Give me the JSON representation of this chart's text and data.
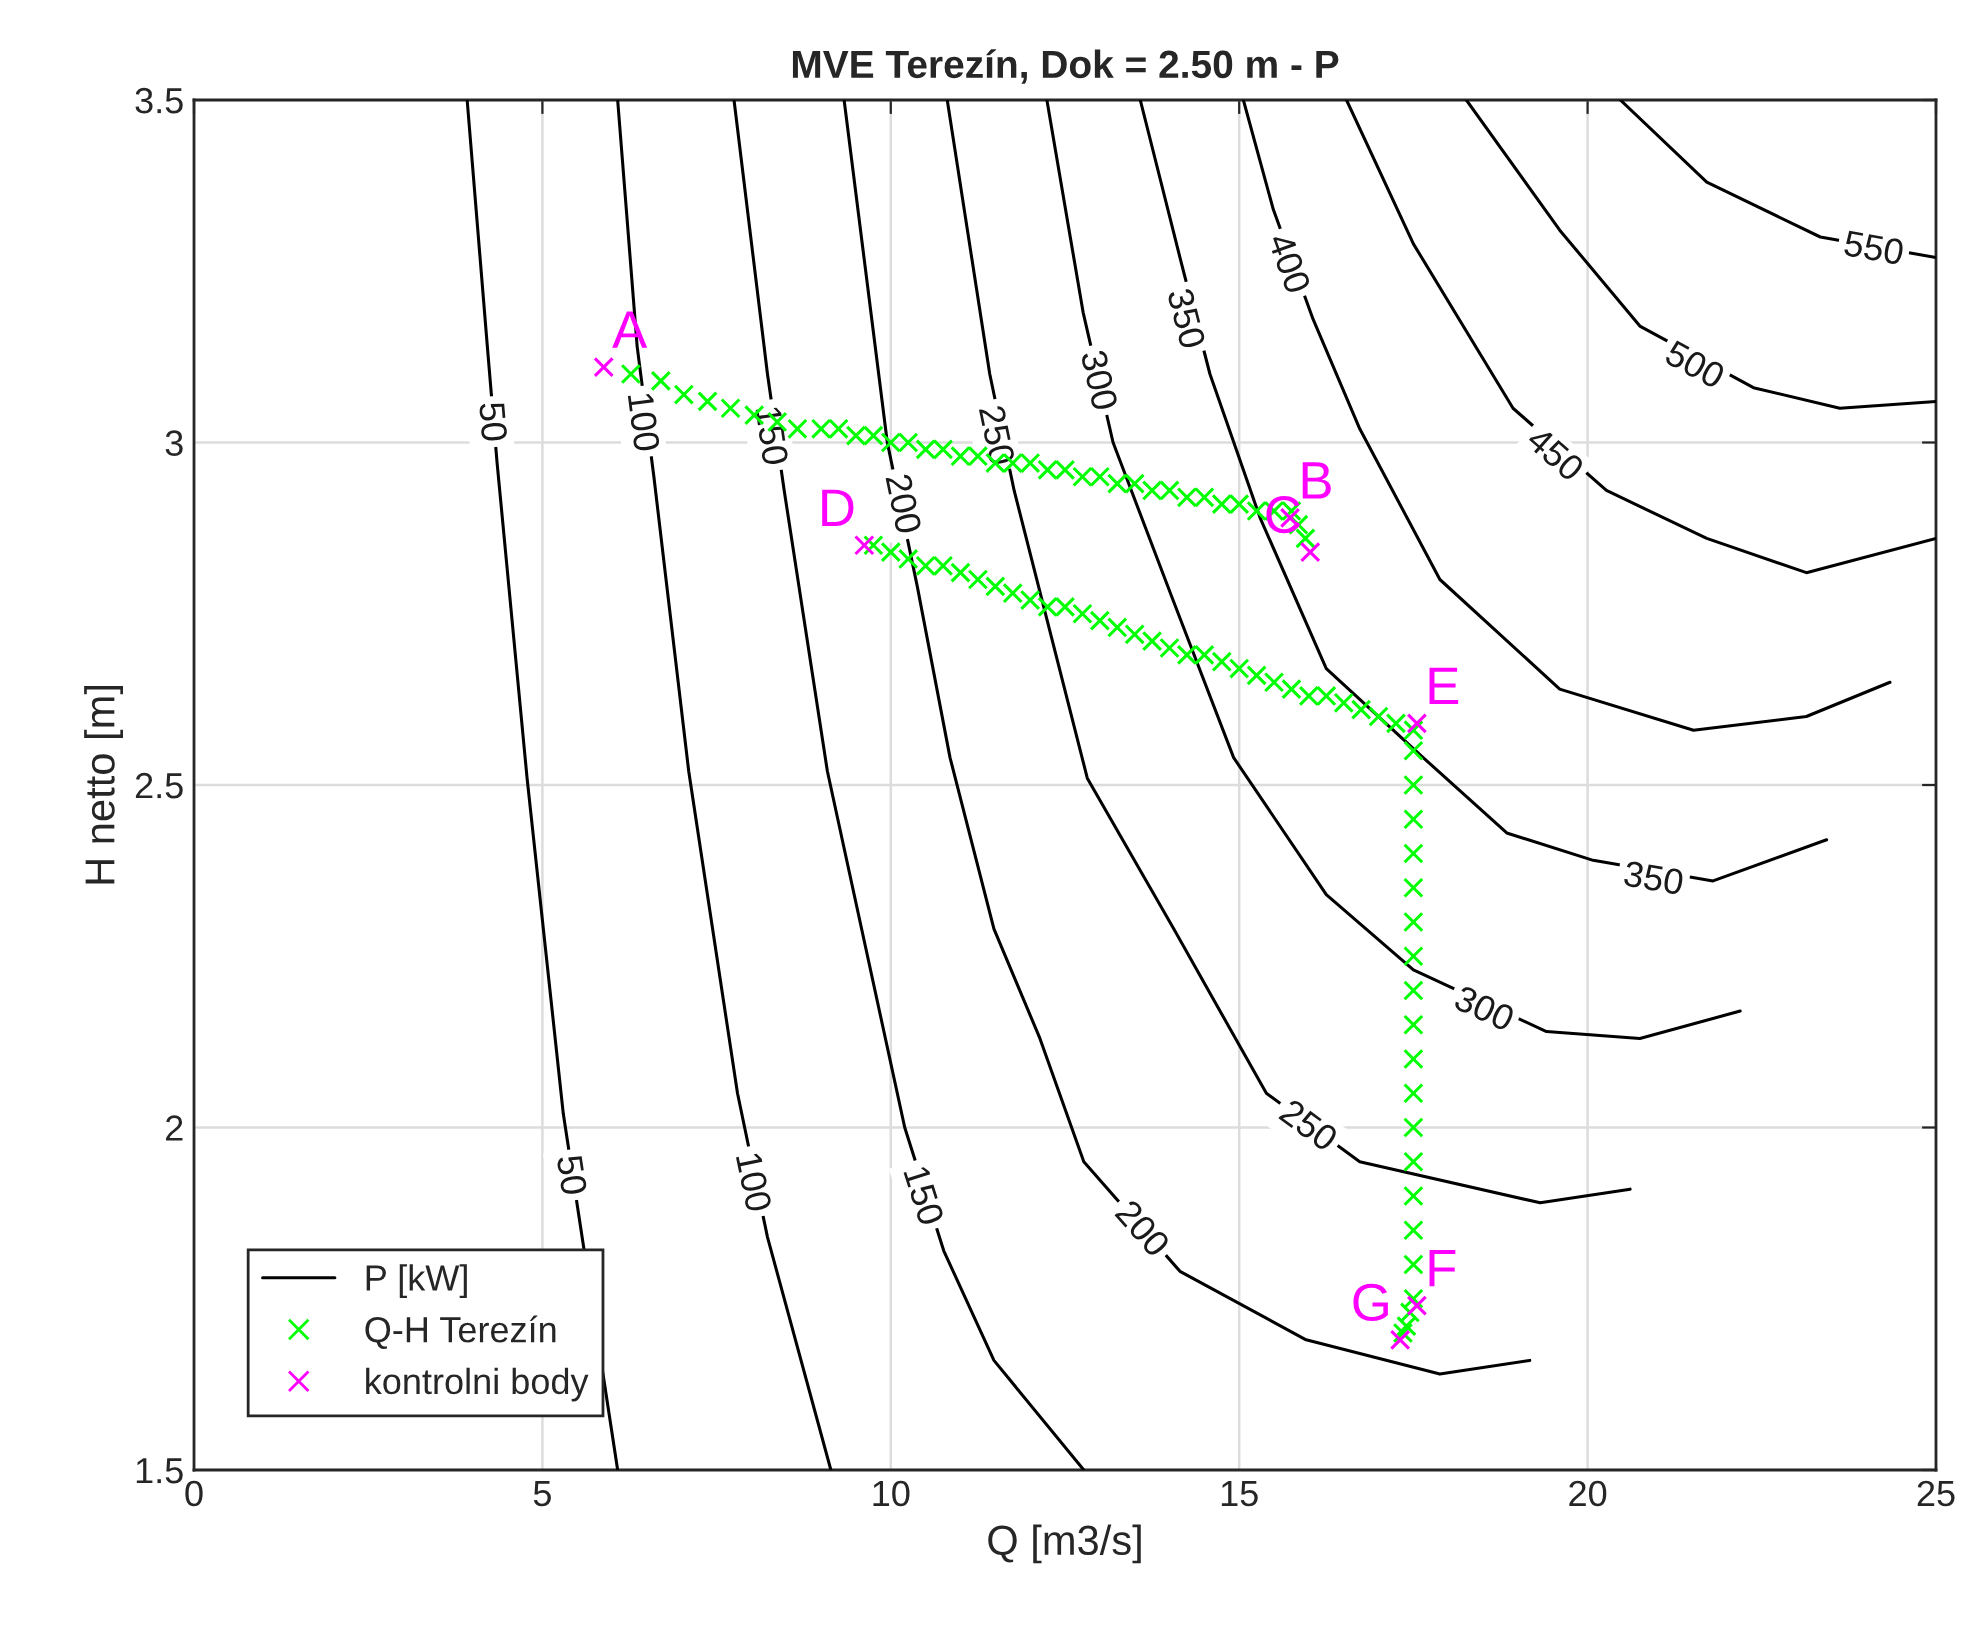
{
  "chart_data": {
    "type": "line",
    "title": "MVE Terezín, Dok = 2.50 m - P",
    "xlabel": "Q [m3/s]",
    "ylabel": "H netto [m]",
    "xlim": [
      0,
      25
    ],
    "ylim": [
      1.5,
      3.5
    ],
    "xticks": [
      0,
      5,
      10,
      15,
      20,
      25
    ],
    "yticks": [
      1.5,
      2,
      2.5,
      3,
      3.5
    ],
    "grid": true,
    "legend": "bottom left",
    "annotations": [
      {
        "text": "50",
        "x": 4.25,
        "y": 3.03
      },
      {
        "text": "50",
        "x": 5.38,
        "y": 1.93
      },
      {
        "text": "100",
        "x": 6.41,
        "y": 3.03
      },
      {
        "text": "100",
        "x": 7.99,
        "y": 1.92
      },
      {
        "text": "150",
        "x": 8.25,
        "y": 3.01
      },
      {
        "text": "150",
        "x": 10.43,
        "y": 1.9
      },
      {
        "text": "200",
        "x": 10.14,
        "y": 2.91
      },
      {
        "text": "200",
        "x": 13.58,
        "y": 1.85
      },
      {
        "text": "250",
        "x": 11.48,
        "y": 3.01
      },
      {
        "text": "250",
        "x": 15.97,
        "y": 2.0
      },
      {
        "text": "300",
        "x": 12.95,
        "y": 3.09
      },
      {
        "text": "300",
        "x": 18.5,
        "y": 2.17
      },
      {
        "text": "350",
        "x": 14.2,
        "y": 3.18
      },
      {
        "text": "350",
        "x": 20.94,
        "y": 2.36
      },
      {
        "text": "400",
        "x": 15.68,
        "y": 3.26
      },
      {
        "text": "450",
        "x": 19.51,
        "y": 2.98
      },
      {
        "text": "500",
        "x": 21.52,
        "y": 3.11
      },
      {
        "text": "550",
        "x": 24.1,
        "y": 3.28
      }
    ],
    "series": [
      {
        "name": "P [kW]",
        "color": "#000000",
        "x": [
          3.92,
          4.21,
          4.35,
          4.78,
          5.3,
          6.08
        ],
        "values": [
          3.5,
          3.14,
          2.97,
          2.51,
          2.02,
          1.5
        ]
      },
      {
        "color": "#000000",
        "x": [
          6.08,
          6.36,
          6.6,
          7.1,
          7.8,
          8.23,
          9.14
        ],
        "values": [
          3.5,
          3.14,
          2.95,
          2.52,
          2.05,
          1.84,
          1.5
        ]
      },
      {
        "color": "#000000",
        "x": [
          7.75,
          8.23,
          8.47,
          9.09,
          10.2,
          10.76,
          11.48,
          12.77
        ],
        "values": [
          3.5,
          3.1,
          2.93,
          2.52,
          2.0,
          1.82,
          1.66,
          1.5
        ]
      },
      {
        "color": "#000000",
        "x": [
          9.33,
          9.95,
          10.38,
          10.85,
          11.48,
          12.14,
          12.77,
          14.15,
          15.96,
          17.88,
          19.17
        ],
        "values": [
          3.5,
          3.0,
          2.79,
          2.54,
          2.29,
          2.13,
          1.95,
          1.79,
          1.69,
          1.64,
          1.66
        ]
      },
      {
        "color": "#000000",
        "x": [
          10.81,
          11.42,
          11.77,
          12.82,
          14.06,
          15.39,
          16.73,
          19.32,
          20.61
        ],
        "values": [
          3.5,
          3.1,
          2.93,
          2.51,
          2.29,
          2.05,
          1.95,
          1.89,
          1.91
        ]
      },
      {
        "color": "#000000",
        "x": [
          12.24,
          12.76,
          13.19,
          14.05,
          14.92,
          16.25,
          17.5,
          19.41,
          20.75,
          22.19
        ],
        "values": [
          3.5,
          3.19,
          3.0,
          2.77,
          2.54,
          2.34,
          2.23,
          2.14,
          2.13,
          2.17
        ]
      },
      {
        "color": "#000000",
        "x": [
          13.58,
          14.15,
          14.58,
          15.3,
          16.25,
          17.64,
          18.84,
          20.08,
          21.8,
          23.43
        ],
        "values": [
          3.5,
          3.27,
          3.1,
          2.89,
          2.67,
          2.54,
          2.43,
          2.39,
          2.36,
          2.42
        ]
      },
      {
        "color": "#000000",
        "x": [
          15.06,
          15.49,
          16.06,
          16.73,
          17.88,
          19.6,
          21.52,
          23.14,
          24.34
        ],
        "values": [
          3.5,
          3.34,
          3.18,
          3.02,
          2.8,
          2.64,
          2.58,
          2.6,
          2.65
        ]
      },
      {
        "color": "#000000",
        "x": [
          16.54,
          17.5,
          18.93,
          20.27,
          21.71,
          23.14,
          25.0
        ],
        "values": [
          3.5,
          3.29,
          3.05,
          2.93,
          2.86,
          2.81,
          2.86
        ]
      },
      {
        "color": "#000000",
        "x": [
          18.26,
          19.6,
          20.75,
          22.38,
          23.62,
          25.0
        ],
        "values": [
          3.5,
          3.31,
          3.17,
          3.08,
          3.05,
          3.06
        ]
      },
      {
        "color": "#000000",
        "x": [
          20.47,
          21.71,
          23.34,
          25.0
        ],
        "values": [
          3.5,
          3.38,
          3.3,
          3.27
        ]
      },
      {
        "name": "Q-H Terezín",
        "type": "scatter",
        "marker": "cross",
        "color": "#00ff00",
        "x": [
          6.27,
          6.7,
          7.03,
          7.37,
          7.7,
          8.04,
          8.37,
          8.66,
          9.0,
          9.25,
          9.5,
          9.75,
          10.0,
          10.25,
          10.5,
          10.75,
          11.0,
          11.25,
          11.5,
          11.75,
          12.0,
          12.25,
          12.5,
          12.75,
          13.0,
          13.25,
          13.5,
          13.75,
          14.0,
          14.25,
          14.5,
          14.75,
          15.0,
          15.25,
          15.5,
          15.75,
          15.85,
          15.95,
          9.75,
          10.0,
          10.25,
          10.5,
          10.75,
          11.0,
          11.25,
          11.5,
          11.75,
          12.0,
          12.25,
          12.5,
          12.75,
          13.0,
          13.25,
          13.5,
          13.75,
          14.0,
          14.25,
          14.5,
          14.75,
          15.0,
          15.25,
          15.5,
          15.75,
          16.0,
          16.25,
          16.5,
          16.75,
          17.0,
          17.25,
          17.5,
          17.5,
          17.5,
          17.5,
          17.5,
          17.5,
          17.5,
          17.5,
          17.5,
          17.5,
          17.5,
          17.5,
          17.5,
          17.5,
          17.5,
          17.5,
          17.5,
          17.5,
          17.45,
          17.4,
          17.35
        ],
        "values": [
          3.1,
          3.09,
          3.07,
          3.06,
          3.05,
          3.04,
          3.03,
          3.02,
          3.02,
          3.02,
          3.01,
          3.01,
          3.0,
          3.0,
          2.99,
          2.99,
          2.98,
          2.98,
          2.97,
          2.97,
          2.97,
          2.96,
          2.96,
          2.95,
          2.95,
          2.94,
          2.94,
          2.93,
          2.93,
          2.92,
          2.92,
          2.91,
          2.91,
          2.9,
          2.9,
          2.9,
          2.88,
          2.86,
          2.85,
          2.84,
          2.83,
          2.82,
          2.82,
          2.81,
          2.8,
          2.79,
          2.78,
          2.77,
          2.76,
          2.76,
          2.75,
          2.74,
          2.73,
          2.72,
          2.71,
          2.7,
          2.69,
          2.69,
          2.68,
          2.67,
          2.66,
          2.65,
          2.64,
          2.63,
          2.63,
          2.62,
          2.61,
          2.6,
          2.59,
          2.58,
          2.55,
          2.5,
          2.45,
          2.4,
          2.35,
          2.3,
          2.25,
          2.2,
          2.15,
          2.1,
          2.05,
          2.0,
          1.95,
          1.9,
          1.85,
          1.8,
          1.75,
          1.73,
          1.71,
          1.7
        ]
      },
      {
        "name": "kontrolni body",
        "type": "scatter",
        "marker": "cross",
        "color": "#ff00ff",
        "x": [
          5.88,
          15.73,
          16.02,
          9.62,
          17.55,
          17.55,
          17.31
        ],
        "values": [
          3.11,
          2.89,
          2.84,
          2.85,
          2.59,
          1.74,
          1.69
        ],
        "value_labels": [
          "A",
          "B",
          "C",
          "D",
          "E",
          "F",
          "G"
        ]
      }
    ]
  }
}
